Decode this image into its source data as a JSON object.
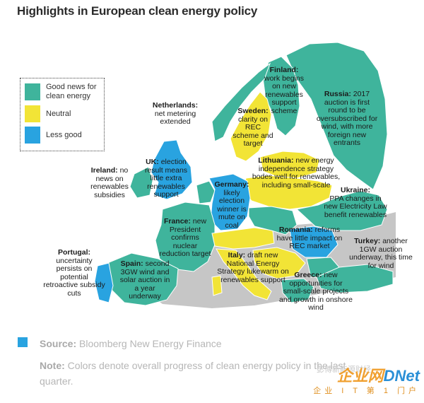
{
  "title": "Highlights in European clean energy policy",
  "colors": {
    "good": "#3fb49c",
    "neutral": "#f2e436",
    "less_good": "#29a3e0",
    "other": "#c6c6c6",
    "sea": "#ffffff"
  },
  "legend": [
    {
      "label": "Good news for clean energy",
      "status": "good"
    },
    {
      "label": "Neutral",
      "status": "neutral"
    },
    {
      "label": "Less good",
      "status": "less_good"
    }
  ],
  "countries": [
    {
      "name": "Netherlands",
      "status": "good",
      "heading": "Netherlands:",
      "text": "net metering extended"
    },
    {
      "name": "Finland",
      "status": "good",
      "heading": "Finland:",
      "text": "work begins on new renewables support scheme"
    },
    {
      "name": "Russia",
      "status": "good",
      "heading": "Russia:",
      "text": "2017 auction is first round to be oversubscribed for wind, with more foreign new entrants"
    },
    {
      "name": "Sweden",
      "status": "neutral",
      "heading": "Sweden:",
      "text": "clarity on REC scheme and target"
    },
    {
      "name": "UK",
      "status": "less_good",
      "heading": "UK:",
      "text": "election result means little extra renewables support"
    },
    {
      "name": "Ireland",
      "status": "good",
      "heading": "Ireland:",
      "text": "no news on renewables subsidies"
    },
    {
      "name": "Lithuania",
      "status": "neutral",
      "heading": "Lithuania:",
      "text": "new energy independence strategy bodes well for renewables, including small-scale"
    },
    {
      "name": "Germany",
      "status": "less_good",
      "heading": "Germany:",
      "text": "likely election winner is mute on coal"
    },
    {
      "name": "Ukraine",
      "status": "good",
      "heading": "Ukraine:",
      "text": "PPA changes in new Electricity Law benefit renewables"
    },
    {
      "name": "France",
      "status": "good",
      "heading": "France:",
      "text": "new President confirms nuclear reduction target"
    },
    {
      "name": "Romania",
      "status": "less_good",
      "heading": "Romania:",
      "text": "reforms have little impact on REC market"
    },
    {
      "name": "Turkey",
      "status": "good",
      "heading": "Turkey:",
      "text": "another 1GW auction underway, this time for wind"
    },
    {
      "name": "Portugal",
      "status": "less_good",
      "heading": "Portugal:",
      "text": "uncertainty persists on potential retroactive subsidy cuts"
    },
    {
      "name": "Spain",
      "status": "good",
      "heading": "Spain:",
      "text": "second 3GW wind and solar auction in a year underway"
    },
    {
      "name": "Italy",
      "status": "neutral",
      "heading": "Italy:",
      "text": "draft new National Energy Strategy lukewarm on renewables support"
    },
    {
      "name": "Greece",
      "status": "good",
      "heading": "Greece:",
      "text": "new opportunities for small-scale projects and growth in onshore wind"
    }
  ],
  "footer": {
    "source_label": "Source:",
    "source_text": "Bloomberg New Energy Finance",
    "note_label": "Note:",
    "note_text_1": "Colors denote overall progress of clean energy policy in the last",
    "note_text_2": "quarter."
  },
  "watermark": {
    "logo_a": "企业网",
    "logo_b": "D",
    "logo_c": "Net",
    "sub": "企业 I T 第 1 门户",
    "faint": "彭博新能源财经"
  }
}
